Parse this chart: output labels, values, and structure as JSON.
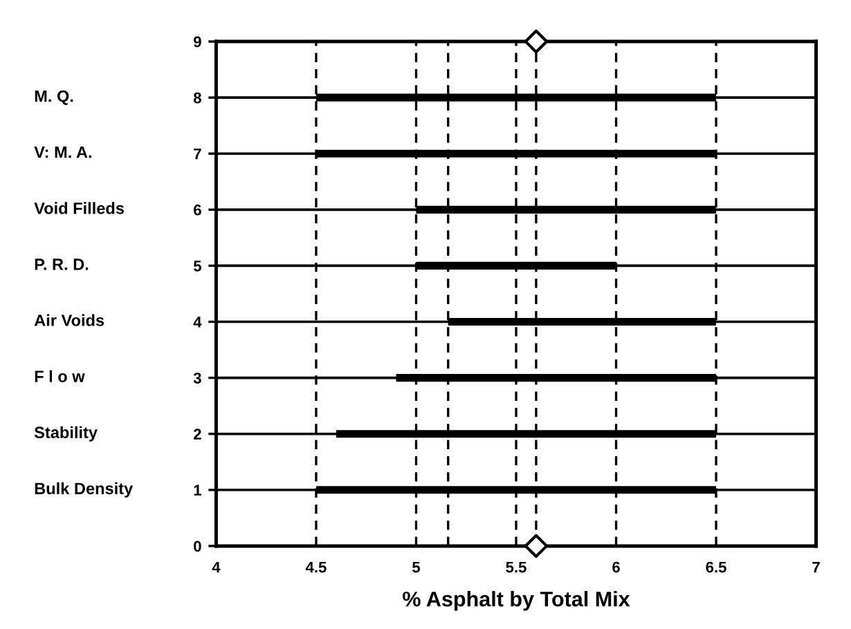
{
  "chart_data": {
    "type": "line",
    "xlabel": "% Asphalt by Total Mix",
    "xlim": [
      4,
      7
    ],
    "xticks": [
      4,
      4.5,
      5,
      5.5,
      6,
      6.5,
      7
    ],
    "ylim": [
      0,
      9
    ],
    "yticks": [
      0,
      1,
      2,
      3,
      4,
      5,
      6,
      7,
      8,
      9
    ],
    "grid": "y",
    "line_style": "solid",
    "marker": "none",
    "series": [
      {
        "color": "#000000",
        "x": [
          4.5,
          6.5
        ],
        "values": [
          8,
          8
        ]
      },
      {
        "color": "#000000",
        "x": [
          4.5,
          6.5
        ],
        "values": [
          7,
          7
        ]
      },
      {
        "color": "#000000",
        "x": [
          5.0,
          6.5
        ],
        "values": [
          6,
          6
        ]
      },
      {
        "color": "#000000",
        "x": [
          5.0,
          6.0
        ],
        "values": [
          5,
          5
        ]
      },
      {
        "color": "#000000",
        "x": [
          5.16,
          6.5
        ],
        "values": [
          4,
          4
        ]
      },
      {
        "color": "#000000",
        "x": [
          4.9,
          6.5
        ],
        "values": [
          3,
          3
        ]
      },
      {
        "color": "#000000",
        "x": [
          4.6,
          6.5
        ],
        "values": [
          2,
          2
        ]
      },
      {
        "color": "#000000",
        "x": [
          4.5,
          6.5
        ],
        "values": [
          1,
          1
        ]
      },
      {
        "type": "scatter",
        "marker": "diamond",
        "color": "#000000",
        "x": [
          5.6,
          5.6
        ],
        "values": [
          0,
          9
        ]
      }
    ],
    "annotations": [
      "M. Q.",
      "V: M. A.",
      "Void Filleds",
      "P. R. D.",
      "Air Voids",
      "F l o w",
      "Stability",
      "Bulk Density"
    ],
    "ref_lines": [
      {
        "axis": "x",
        "value": 4.5,
        "line_style": "dashed",
        "color": "#000000"
      },
      {
        "axis": "x",
        "value": 5,
        "line_style": "dashed",
        "color": "#000000"
      },
      {
        "axis": "x",
        "value": 5.16,
        "line_style": "dashed",
        "color": "#000000"
      },
      {
        "axis": "x",
        "value": 5.5,
        "line_style": "dashed",
        "color": "#000000"
      },
      {
        "axis": "x",
        "value": 5.6,
        "line_style": "dashed",
        "color": "#000000"
      },
      {
        "axis": "x",
        "value": 6,
        "line_style": "dashed",
        "color": "#000000"
      },
      {
        "axis": "x",
        "value": 6.5,
        "line_style": "dashed",
        "color": "#000000"
      }
    ]
  }
}
